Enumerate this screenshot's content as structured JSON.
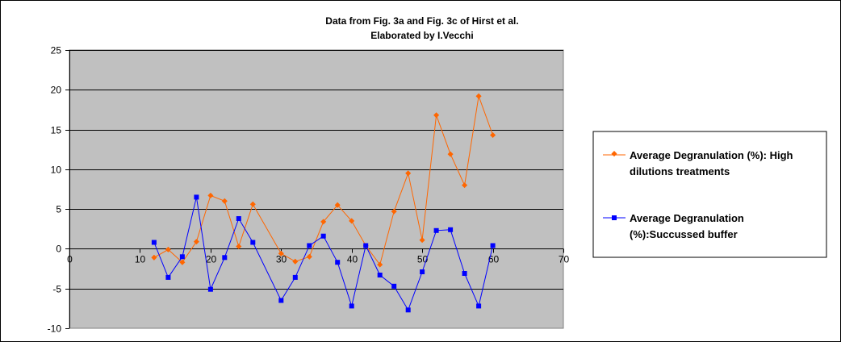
{
  "chart_data": {
    "type": "line",
    "title": "Data from Fig. 3a and Fig. 3c of Hirst et al.",
    "subtitle": "Elaborated by I.Vecchi",
    "xlabel": "",
    "ylabel": "",
    "xlim": [
      0,
      70
    ],
    "ylim": [
      -10,
      25
    ],
    "x_ticks": [
      "0",
      "10",
      "20",
      "30",
      "40",
      "50",
      "60",
      "70"
    ],
    "y_ticks": [
      "25",
      "20",
      "15",
      "10",
      "5",
      "0",
      "-5",
      "-10"
    ],
    "grid": "horizontal",
    "plot_background": "#c0c0c0",
    "legend_position": "right",
    "series": [
      {
        "name": "Average Degranulation (%): High dilutions treatments",
        "legend_lines": [
          "Average Degranulation (%): High",
          "dilutions treatments"
        ],
        "color": "#ff6600",
        "marker": "diamond",
        "x": [
          12,
          14,
          16,
          18,
          20,
          22,
          24,
          26,
          30,
          32,
          34,
          36,
          38,
          40,
          42,
          44,
          46,
          48,
          50,
          52,
          54,
          56,
          58,
          60
        ],
        "y": [
          -1.1,
          -0.1,
          -1.7,
          0.9,
          6.7,
          6.0,
          0.3,
          5.6,
          -0.6,
          -1.6,
          -1.0,
          3.4,
          5.5,
          3.5,
          0.4,
          -2.0,
          4.7,
          9.5,
          1.1,
          16.8,
          11.9,
          8.0,
          19.2,
          14.3
        ]
      },
      {
        "name": "Average Degranulation (%):Succussed buffer",
        "legend_lines": [
          "Average Degranulation",
          "(%):Succussed buffer"
        ],
        "color": "#0000ff",
        "marker": "square",
        "x": [
          12,
          14,
          16,
          18,
          20,
          22,
          24,
          26,
          30,
          32,
          34,
          36,
          38,
          40,
          42,
          44,
          46,
          48,
          50,
          52,
          54,
          56,
          58,
          60
        ],
        "y": [
          0.8,
          -3.6,
          -1.0,
          6.5,
          -5.1,
          -1.1,
          3.8,
          0.8,
          -6.5,
          -3.6,
          0.4,
          1.6,
          -1.7,
          -7.2,
          0.4,
          -3.3,
          -4.7,
          -7.7,
          -2.9,
          2.3,
          2.4,
          -3.1,
          -7.2,
          0.4
        ]
      }
    ]
  }
}
